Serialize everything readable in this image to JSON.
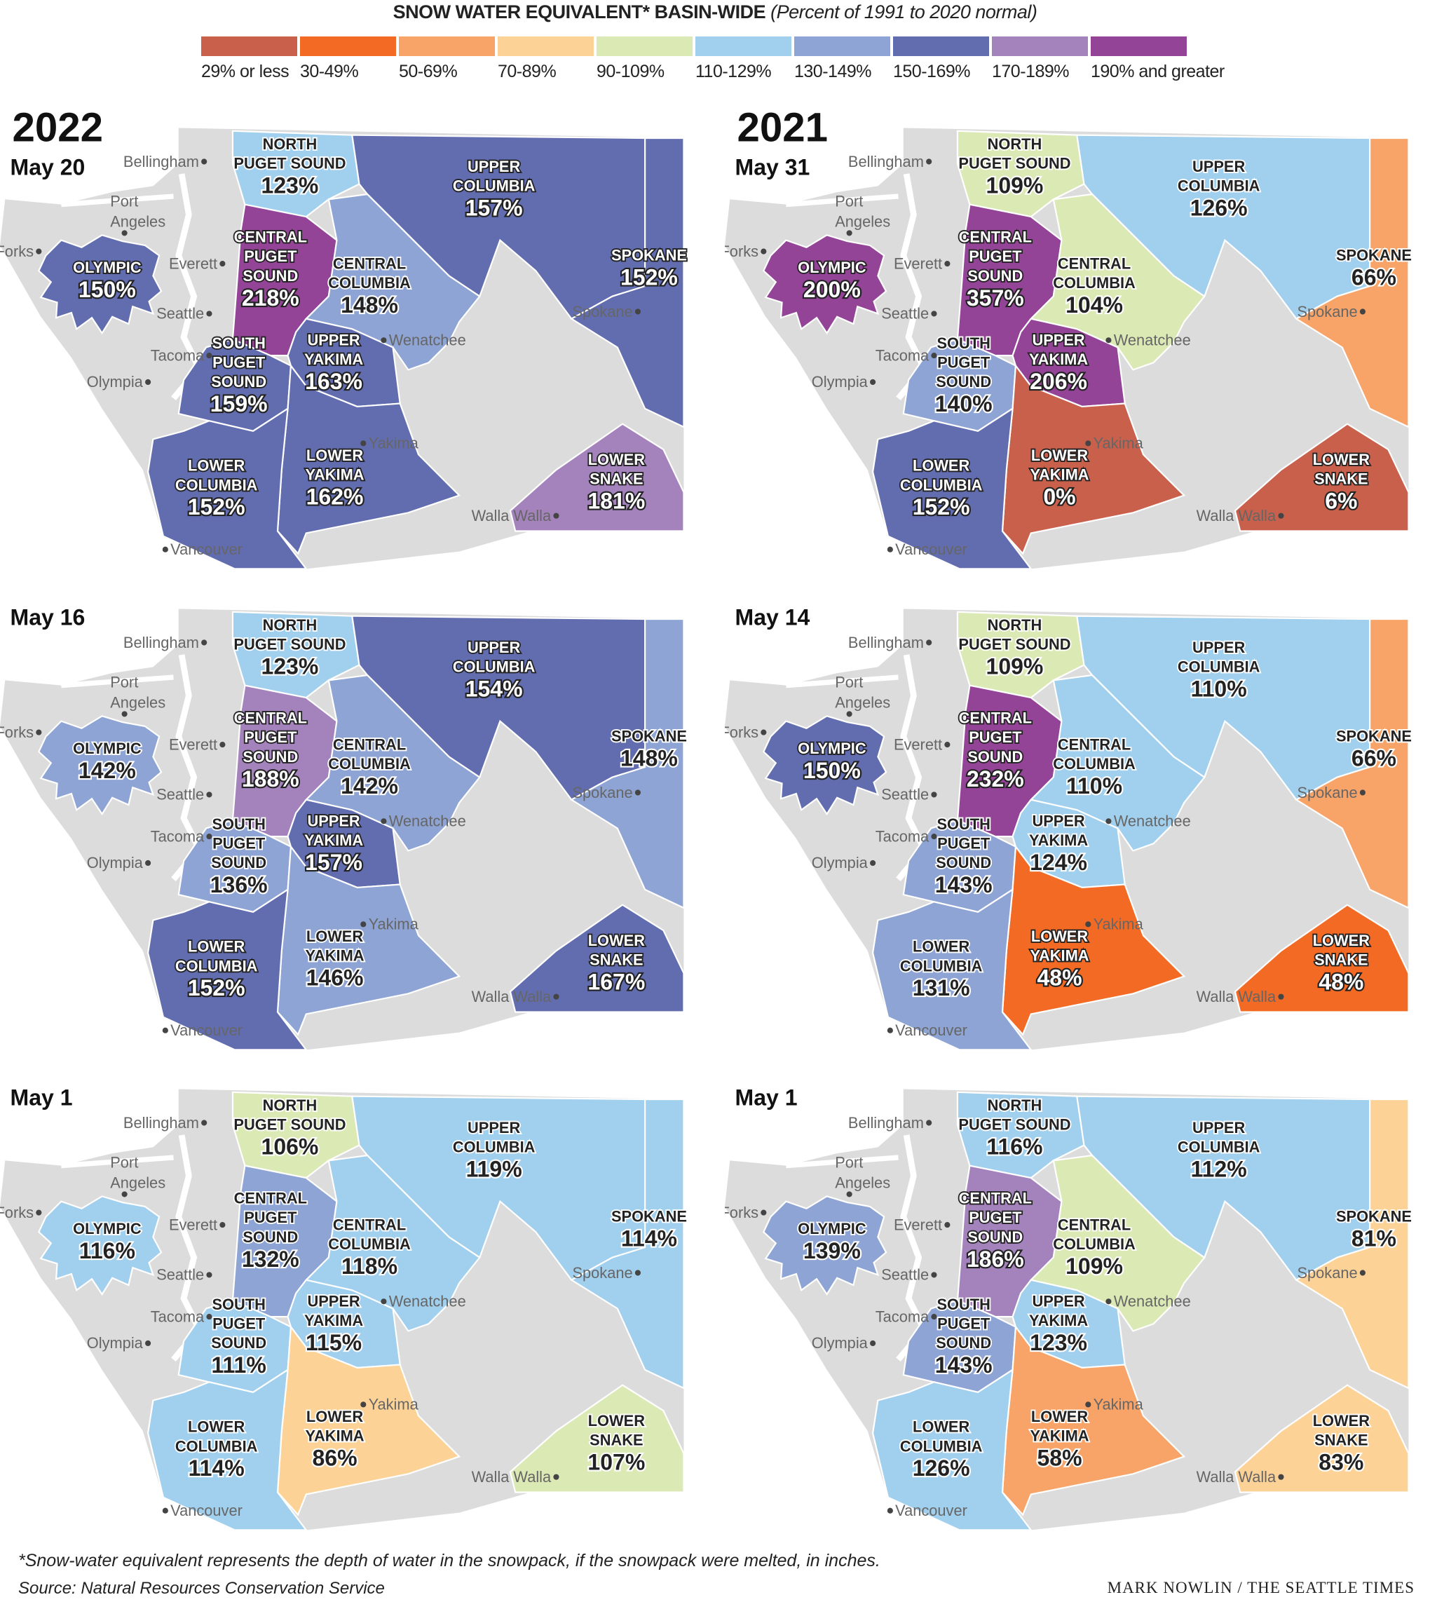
{
  "title": {
    "main": "SNOW WATER EQUIVALENT* BASIN-WIDE",
    "sub": "(Percent of 1991 to 2020 normal)"
  },
  "legend": [
    {
      "label": "29% or less",
      "color": "#c9604c",
      "min": 0,
      "max": 29
    },
    {
      "label": "30-49%",
      "color": "#f26a24",
      "min": 30,
      "max": 49
    },
    {
      "label": "50-69%",
      "color": "#f8a367",
      "min": 50,
      "max": 69
    },
    {
      "label": "70-89%",
      "color": "#fdd297",
      "min": 70,
      "max": 89
    },
    {
      "label": "90-109%",
      "color": "#dbe9b5",
      "min": 90,
      "max": 109
    },
    {
      "label": "110-129%",
      "color": "#a1cfee",
      "min": 110,
      "max": 129
    },
    {
      "label": "130-149%",
      "color": "#8ea4d4",
      "min": 130,
      "max": 149
    },
    {
      "label": "150-169%",
      "color": "#626db0",
      "min": 150,
      "max": 169
    },
    {
      "label": "170-189%",
      "color": "#a483bd",
      "min": 170,
      "max": 189
    },
    {
      "label": "190% and greater",
      "color": "#934497",
      "min": 190,
      "max": 100000
    }
  ],
  "basins": {
    "nps": [
      "NORTH",
      "PUGET SOUND"
    ],
    "uc": [
      "UPPER",
      "COLUMBIA"
    ],
    "spk": [
      "SPOKANE"
    ],
    "cps": [
      "CENTRAL",
      "PUGET",
      "SOUND"
    ],
    "cc": [
      "CENTRAL",
      "COLUMBIA"
    ],
    "uy": [
      "UPPER",
      "YAKIMA"
    ],
    "sps": [
      "SOUTH",
      "PUGET",
      "SOUND"
    ],
    "ly": [
      "LOWER",
      "YAKIMA"
    ],
    "lc": [
      "LOWER",
      "COLUMBIA"
    ],
    "ls": [
      "LOWER",
      "SNAKE"
    ],
    "oly": [
      "OLYMPIC"
    ]
  },
  "cities": [
    "Bellingham",
    "Port Angeles",
    "Forks",
    "Everett",
    "Seattle",
    "Tacoma",
    "Olympia",
    "Wenatchee",
    "Spokane",
    "Yakima",
    "Walla Walla",
    "Vancouver"
  ],
  "panels": [
    {
      "year": "2022",
      "date": "May 20",
      "values": {
        "nps": "123%",
        "uc": "157%",
        "spk": "152%",
        "cps": "218%",
        "cc": "148%",
        "uy": "163%",
        "sps": "159%",
        "ly": "162%",
        "lc": "152%",
        "ls": "181%",
        "oly": "150%"
      }
    },
    {
      "year": "2021",
      "date": "May 31",
      "values": {
        "nps": "109%",
        "uc": "126%",
        "spk": "66%",
        "cps": "357%",
        "cc": "104%",
        "uy": "206%",
        "sps": "140%",
        "ly": "0%",
        "lc": "152%",
        "ls": "6%",
        "oly": "200%"
      }
    },
    {
      "year": "",
      "date": "May 16",
      "values": {
        "nps": "123%",
        "uc": "154%",
        "spk": "148%",
        "cps": "188%",
        "cc": "142%",
        "uy": "157%",
        "sps": "136%",
        "ly": "146%",
        "lc": "152%",
        "ls": "167%",
        "oly": "142%"
      }
    },
    {
      "year": "",
      "date": "May 14",
      "values": {
        "nps": "109%",
        "uc": "110%",
        "spk": "66%",
        "cps": "232%",
        "cc": "110%",
        "uy": "124%",
        "sps": "143%",
        "ly": "48%",
        "lc": "131%",
        "ls": "48%",
        "oly": "150%"
      }
    },
    {
      "year": "",
      "date": "May 1",
      "values": {
        "nps": "106%",
        "uc": "119%",
        "spk": "114%",
        "cps": "132%",
        "cc": "118%",
        "uy": "115%",
        "sps": "111%",
        "ly": "86%",
        "lc": "114%",
        "ls": "107%",
        "oly": "116%"
      }
    },
    {
      "year": "",
      "date": "May 1",
      "values": {
        "nps": "116%",
        "uc": "112%",
        "spk": "81%",
        "cps": "186%",
        "cc": "109%",
        "uy": "123%",
        "sps": "143%",
        "ly": "58%",
        "lc": "126%",
        "ls": "83%",
        "oly": "139%"
      }
    }
  ],
  "footnote": "*Snow-water equivalent represents the depth of water in the snowpack, if the snowpack were melted, in inches.",
  "source": "Source: Natural Resources Conservation Service",
  "credit": "MARK NOWLIN / THE SEATTLE TIMES"
}
